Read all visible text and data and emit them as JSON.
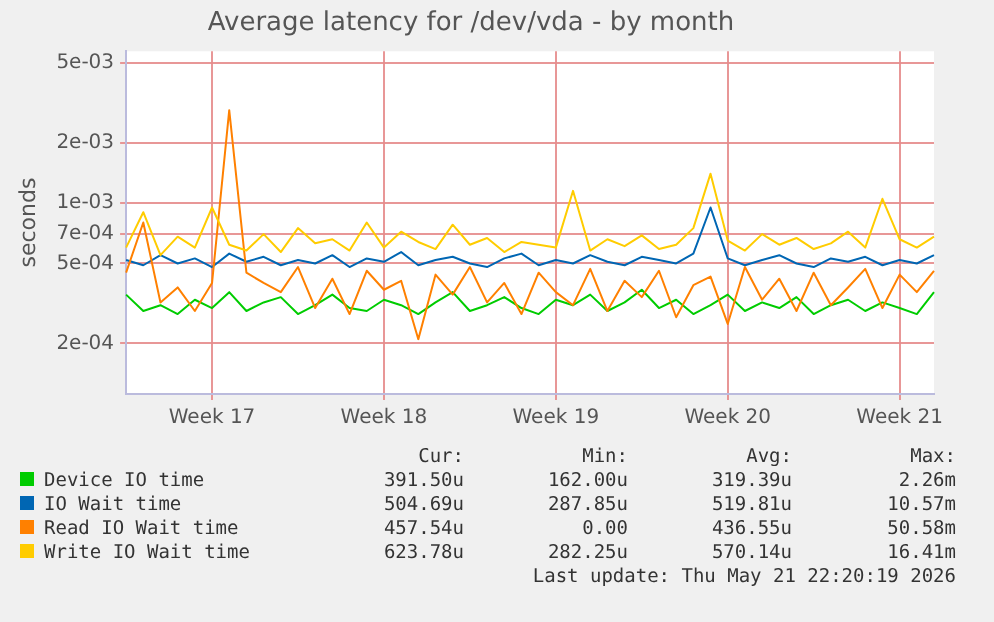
{
  "chart_data": {
    "type": "line",
    "title": "Average latency for /dev/vda - by month",
    "ylabel": "seconds",
    "log": "y",
    "grid": true,
    "legend": "bottom",
    "marker": "none",
    "line_style": "solid",
    "categories": [
      null,
      null,
      null,
      null,
      null,
      "Week 17",
      null,
      null,
      null,
      null,
      null,
      null,
      null,
      null,
      null,
      "Week 18",
      null,
      null,
      null,
      null,
      null,
      null,
      null,
      null,
      null,
      "Week 19",
      null,
      null,
      null,
      null,
      null,
      null,
      null,
      null,
      null,
      "Week 20",
      null,
      null,
      null,
      null,
      null,
      null,
      null,
      null,
      null,
      "Week 21",
      null,
      null
    ],
    "ylim": [
      0.000112,
      0.0057
    ],
    "yticks": [
      {
        "value": 0.0002,
        "label": "2e-04"
      },
      {
        "value": 0.0005,
        "label": "5e-04"
      },
      {
        "value": 0.0007,
        "label": "7e-04"
      },
      {
        "value": 0.001,
        "label": "1e-03"
      },
      {
        "value": 0.002,
        "label": "2e-03"
      },
      {
        "value": 0.005,
        "label": "5e-03"
      }
    ],
    "series": [
      {
        "name": "Device IO time",
        "color": "#00cc00",
        "values": [
          0.00035,
          0.00029,
          0.00031,
          0.00028,
          0.00033,
          0.0003,
          0.00036,
          0.00029,
          0.00032,
          0.00034,
          0.00028,
          0.00031,
          0.00035,
          0.0003,
          0.00029,
          0.00033,
          0.00031,
          0.00028,
          0.00032,
          0.00036,
          0.00029,
          0.00031,
          0.00034,
          0.0003,
          0.00028,
          0.00033,
          0.00031,
          0.00035,
          0.00029,
          0.00032,
          0.00037,
          0.0003,
          0.00033,
          0.00028,
          0.00031,
          0.00035,
          0.00029,
          0.00032,
          0.0003,
          0.00034,
          0.00028,
          0.00031,
          0.00033,
          0.00029,
          0.00032,
          0.0003,
          0.00028,
          0.00036
        ]
      },
      {
        "name": "IO Wait time",
        "color": "#0066b3",
        "values": [
          0.00052,
          0.00049,
          0.00055,
          0.0005,
          0.00053,
          0.00048,
          0.00056,
          0.00051,
          0.00054,
          0.00049,
          0.00052,
          0.0005,
          0.00055,
          0.00048,
          0.00053,
          0.00051,
          0.00057,
          0.00049,
          0.00052,
          0.00054,
          0.0005,
          0.00048,
          0.00053,
          0.00056,
          0.00049,
          0.00052,
          0.0005,
          0.00055,
          0.00051,
          0.00049,
          0.00054,
          0.00052,
          0.0005,
          0.00056,
          0.00095,
          0.00053,
          0.00049,
          0.00052,
          0.00055,
          0.0005,
          0.00048,
          0.00053,
          0.00051,
          0.00054,
          0.00049,
          0.00052,
          0.0005,
          0.00055
        ]
      },
      {
        "name": "Read IO Wait time",
        "color": "#ff8000",
        "values": [
          0.00045,
          0.0008,
          0.00032,
          0.00038,
          0.00029,
          0.0004,
          0.0029,
          0.00045,
          0.0004,
          0.00036,
          0.00048,
          0.0003,
          0.00042,
          0.00028,
          0.00046,
          0.00037,
          0.00041,
          0.00021,
          0.00044,
          0.00035,
          0.00048,
          0.00032,
          0.0004,
          0.00028,
          0.00045,
          0.00036,
          0.00031,
          0.00047,
          0.00029,
          0.00041,
          0.00034,
          0.00046,
          0.00027,
          0.00039,
          0.00043,
          0.00025,
          0.00048,
          0.00033,
          0.00042,
          0.00029,
          0.00045,
          0.00031,
          0.00038,
          0.00047,
          0.0003,
          0.00044,
          0.00036,
          0.00046
        ]
      },
      {
        "name": "Write IO Wait time",
        "color": "#ffcc00",
        "values": [
          0.0006,
          0.0009,
          0.00055,
          0.00068,
          0.0006,
          0.00095,
          0.00062,
          0.00058,
          0.0007,
          0.00057,
          0.00075,
          0.00063,
          0.00066,
          0.00058,
          0.0008,
          0.0006,
          0.00072,
          0.00064,
          0.00059,
          0.00078,
          0.00062,
          0.00067,
          0.00057,
          0.00064,
          0.00062,
          0.0006,
          0.00115,
          0.00058,
          0.00066,
          0.00061,
          0.00069,
          0.00059,
          0.00062,
          0.00075,
          0.0014,
          0.00065,
          0.00058,
          0.0007,
          0.00062,
          0.00067,
          0.00059,
          0.00063,
          0.00072,
          0.0006,
          0.00105,
          0.00066,
          0.0006,
          0.00068
        ]
      }
    ],
    "annotations": [
      "Cur:",
      "Min:",
      "Avg:",
      "Max:",
      "391.50u",
      "162.00u",
      "319.39u",
      "2.26m",
      "504.69u",
      "287.85u",
      "519.81u",
      "10.57m",
      "457.54u",
      "0.00",
      "436.55u",
      "50.58m",
      "623.78u",
      "282.25u",
      "570.14u",
      "16.41m",
      "Last update: Thu May 21 22:20:19 2026"
    ]
  }
}
